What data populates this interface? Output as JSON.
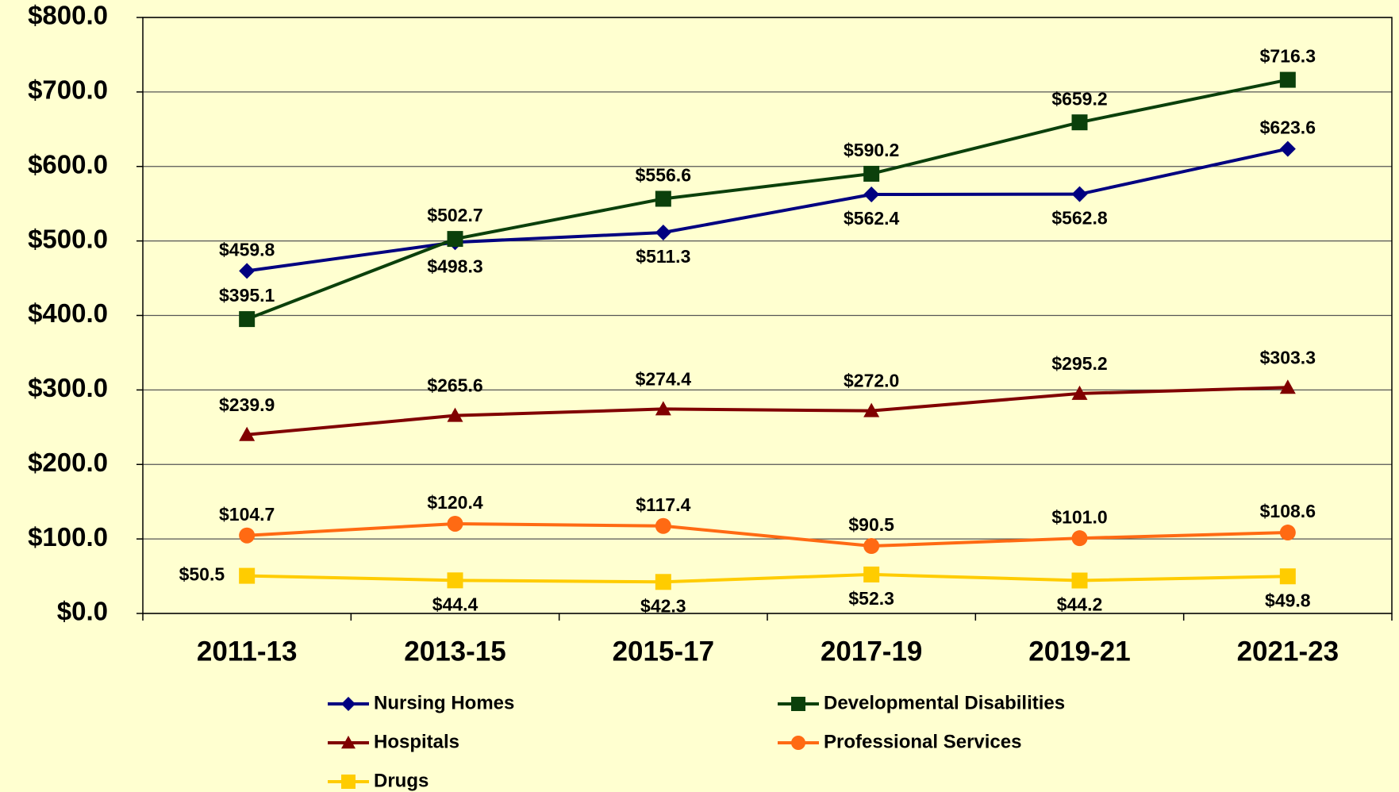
{
  "chart_data": {
    "type": "line",
    "categories": [
      "2011-13",
      "2013-15",
      "2015-17",
      "2017-19",
      "2019-21",
      "2021-23"
    ],
    "series": [
      {
        "name": "Nursing Homes",
        "color": "#000080",
        "marker": "diamond",
        "values": [
          459.8,
          498.3,
          511.3,
          562.4,
          562.8,
          623.6
        ],
        "value_labels": [
          "$459.8",
          "$498.3",
          "$511.3",
          "$562.4",
          "$562.8",
          "$623.6"
        ]
      },
      {
        "name": "Developmental Disabilities",
        "color": "#0b400b",
        "marker": "square",
        "values": [
          395.1,
          502.7,
          556.6,
          590.2,
          659.2,
          716.3
        ],
        "value_labels": [
          "$395.1",
          "$502.7",
          "$556.6",
          "$590.2",
          "$659.2",
          "$716.3"
        ]
      },
      {
        "name": "Hospitals",
        "color": "#800000",
        "marker": "triangle",
        "values": [
          239.9,
          265.6,
          274.4,
          272.0,
          295.2,
          303.3
        ],
        "value_labels": [
          "$239.9",
          "$265.6",
          "$274.4",
          "$272.0",
          "$295.2",
          "$303.3"
        ]
      },
      {
        "name": "Professional Services",
        "color": "#ff6a13",
        "marker": "circle",
        "values": [
          104.7,
          120.4,
          117.4,
          90.5,
          101.0,
          108.6
        ],
        "value_labels": [
          "$104.7",
          "$120.4",
          "$117.4",
          "$90.5",
          "$101.0",
          "$108.6"
        ]
      },
      {
        "name": "Drugs",
        "color": "#ffcc00",
        "marker": "square",
        "values": [
          50.5,
          44.4,
          42.3,
          52.3,
          44.2,
          49.8
        ],
        "value_labels": [
          "$50.5",
          "$44.4",
          "$42.3",
          "$52.3",
          "$44.2",
          "$49.8"
        ]
      }
    ],
    "ylim": [
      0,
      800
    ],
    "yticks": [
      {
        "value": 0,
        "label": "$0.0"
      },
      {
        "value": 100,
        "label": "$100.0"
      },
      {
        "value": 200,
        "label": "$200.0"
      },
      {
        "value": 300,
        "label": "$300.0"
      },
      {
        "value": 400,
        "label": "$400.0"
      },
      {
        "value": 500,
        "label": "$500.0"
      },
      {
        "value": 600,
        "label": "$600.0"
      },
      {
        "value": 700,
        "label": "$700.0"
      },
      {
        "value": 800,
        "label": "$800.0"
      }
    ],
    "grid": true,
    "legend": "bottom"
  }
}
